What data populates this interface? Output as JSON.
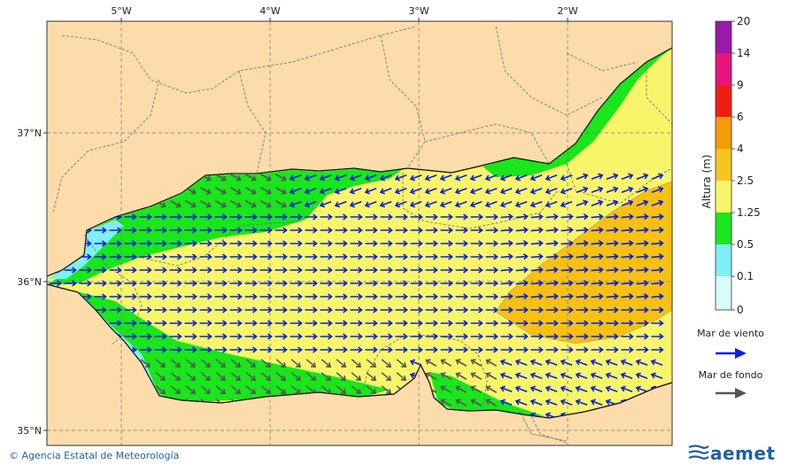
{
  "map": {
    "lon_labels": [
      "5°W",
      "4°W",
      "3°W",
      "2°W"
    ],
    "lat_labels": [
      "37°N",
      "36°N",
      "35°N"
    ]
  },
  "colorbar": {
    "title": "Altura (m)",
    "levels": [
      "20",
      "14",
      "9",
      "6",
      "4",
      "2.5",
      "1.25",
      "0.5",
      "0.1",
      "0"
    ],
    "colors": [
      "#9b19a8",
      "#e8137f",
      "#f01c14",
      "#f39b0c",
      "#f7c51f",
      "#f9f56a",
      "#19e61b",
      "#7ff0f5",
      "#d7fbfb"
    ]
  },
  "legend": {
    "wind_sea_label": "Mar de viento",
    "swell_label": "Mar de fondo",
    "wind_sea_color": "#0a1ee0",
    "swell_color": "#555555"
  },
  "footer": {
    "copyright": "© Agencia Estatal de Meteorología",
    "brand": "aemet"
  },
  "colors": {
    "land": "#fcdcaa",
    "sea_yellow": "#f9f56a",
    "sea_orange": "#f6c112",
    "sea_green": "#19e61b",
    "sea_cyan": "#7ff0f5"
  }
}
